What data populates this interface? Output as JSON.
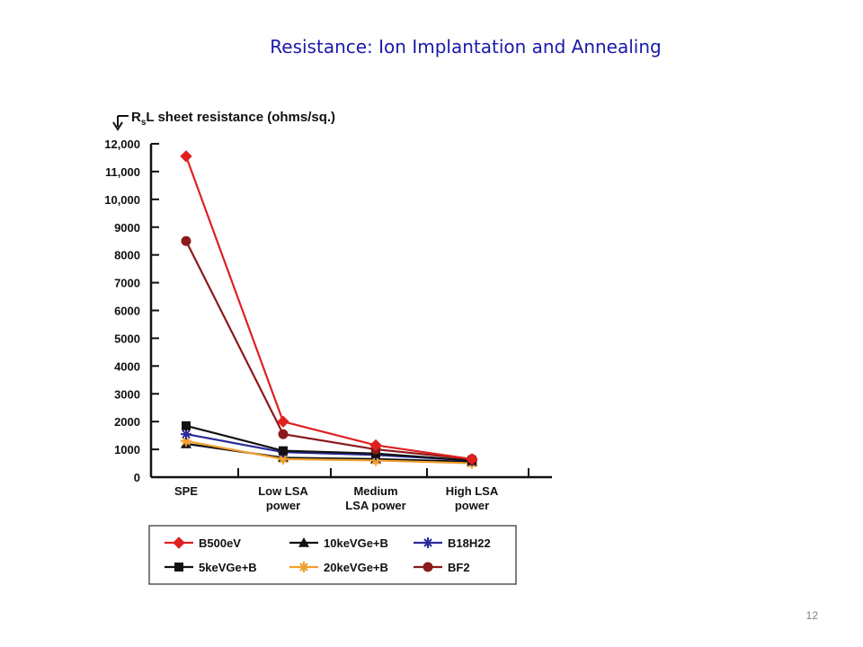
{
  "slide": {
    "title": "Resistance: Ion Implantation and Annealing",
    "page_number": "12"
  },
  "colors": {
    "title": "#1a1aa8",
    "axis": "#111111"
  },
  "chart_data": {
    "type": "line",
    "title": "",
    "ylabel_main": "R",
    "ylabel_sub": "s",
    "ylabel_rest": "L sheet resistance (ohms/sq.)",
    "xlabel": "",
    "ylim": [
      0,
      12000
    ],
    "y_ticks": [
      0,
      1000,
      2000,
      3000,
      4000,
      5000,
      6000,
      7000,
      8000,
      9000,
      10000,
      11000,
      12000
    ],
    "y_tick_labels": [
      "0",
      "1000",
      "2000",
      "3000",
      "4000",
      "5000",
      "6000",
      "7000",
      "8000",
      "9000",
      "10,000",
      "11,000",
      "12,000"
    ],
    "categories": [
      [
        "SPE"
      ],
      [
        "Low LSA",
        "power"
      ],
      [
        "Medium",
        "LSA power"
      ],
      [
        "High LSA",
        "power"
      ]
    ],
    "grid": false,
    "legend_position": "bottom",
    "series": [
      {
        "name": "B500eV",
        "color": "#e02020",
        "marker": "diamond",
        "values": [
          11550,
          2000,
          1150,
          650
        ]
      },
      {
        "name": "10keVGe+B",
        "color": "#111111",
        "marker": "triangle",
        "values": [
          1200,
          700,
          650,
          550
        ]
      },
      {
        "name": "B18H22",
        "color": "#2a2a9a",
        "marker": "star",
        "values": [
          1550,
          900,
          800,
          600
        ]
      },
      {
        "name": "5keVGe+B",
        "color": "#111111",
        "marker": "square",
        "values": [
          1850,
          950,
          850,
          600
        ]
      },
      {
        "name": "20keVGe+B",
        "color": "#f0a030",
        "marker": "asterisk",
        "values": [
          1300,
          650,
          600,
          500
        ]
      },
      {
        "name": "BF2",
        "color": "#8b1a1a",
        "marker": "circle",
        "values": [
          8500,
          1550,
          1000,
          650
        ]
      }
    ]
  }
}
